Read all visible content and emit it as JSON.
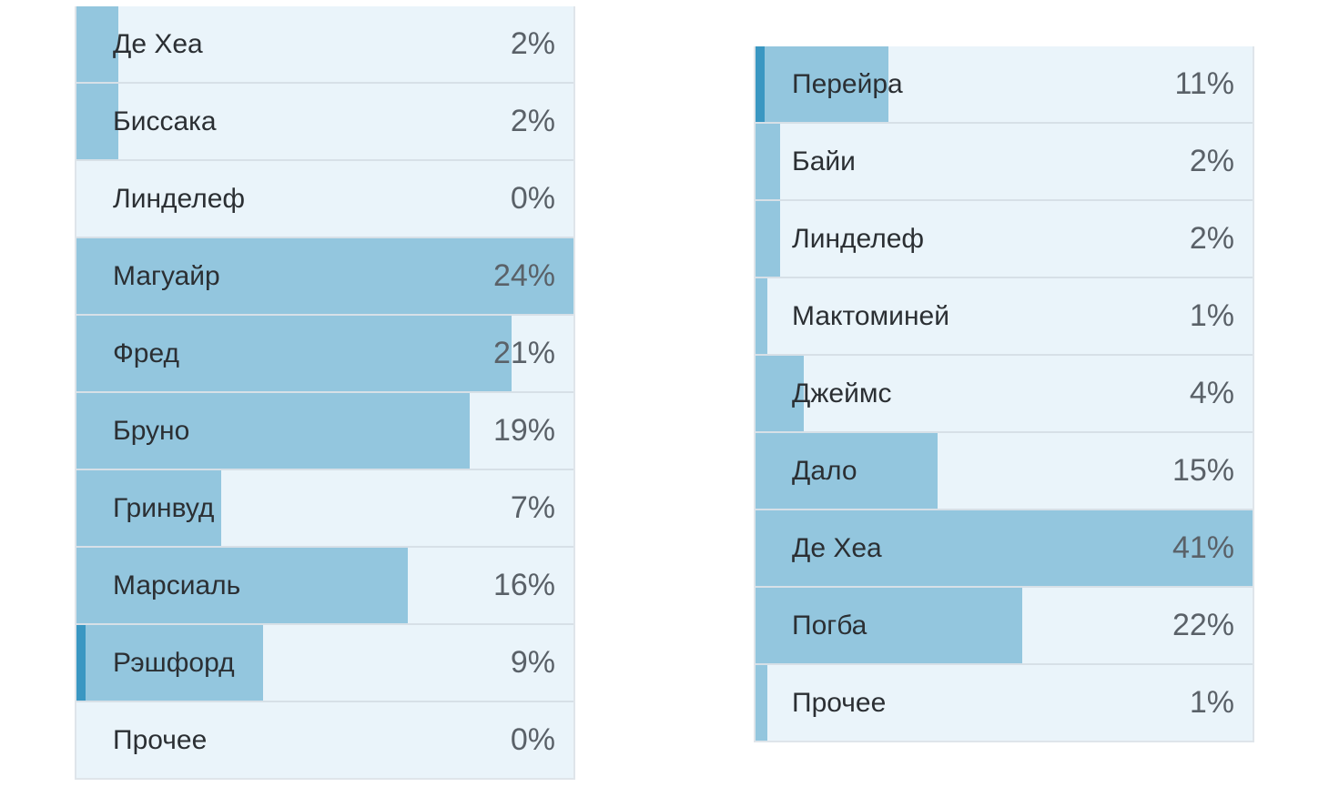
{
  "polls": [
    {
      "options": [
        {
          "label": "Де Хеа",
          "percent_text": "2%",
          "percent": 2,
          "selected": false
        },
        {
          "label": "Биссака",
          "percent_text": "2%",
          "percent": 2,
          "selected": false
        },
        {
          "label": "Линделеф",
          "percent_text": "0%",
          "percent": 0,
          "selected": false
        },
        {
          "label": "Магуайр",
          "percent_text": "24%",
          "percent": 24,
          "selected": false
        },
        {
          "label": "Фред",
          "percent_text": "21%",
          "percent": 21,
          "selected": false
        },
        {
          "label": "Бруно",
          "percent_text": "19%",
          "percent": 19,
          "selected": false
        },
        {
          "label": "Гринвуд",
          "percent_text": "7%",
          "percent": 7,
          "selected": false
        },
        {
          "label": "Марсиаль",
          "percent_text": "16%",
          "percent": 16,
          "selected": false
        },
        {
          "label": "Рэшфорд",
          "percent_text": "9%",
          "percent": 9,
          "selected": true
        },
        {
          "label": "Прочее",
          "percent_text": "0%",
          "percent": 0,
          "selected": false
        }
      ]
    },
    {
      "options": [
        {
          "label": "Перейра",
          "percent_text": "11%",
          "percent": 11,
          "selected": true
        },
        {
          "label": "Байи",
          "percent_text": "2%",
          "percent": 2,
          "selected": false
        },
        {
          "label": "Линделеф",
          "percent_text": "2%",
          "percent": 2,
          "selected": false
        },
        {
          "label": "Мактоминей",
          "percent_text": "1%",
          "percent": 1,
          "selected": false
        },
        {
          "label": "Джеймс",
          "percent_text": "4%",
          "percent": 4,
          "selected": false
        },
        {
          "label": "Дало",
          "percent_text": "15%",
          "percent": 15,
          "selected": false
        },
        {
          "label": "Де Хеа",
          "percent_text": "41%",
          "percent": 41,
          "selected": false
        },
        {
          "label": "Погба",
          "percent_text": "22%",
          "percent": 22,
          "selected": false
        },
        {
          "label": "Прочее",
          "percent_text": "1%",
          "percent": 1,
          "selected": false
        }
      ]
    }
  ],
  "colors": {
    "row_background": "#eaf4fa",
    "bar_fill": "#93c6de",
    "selected_marker": "#3a97c2"
  }
}
